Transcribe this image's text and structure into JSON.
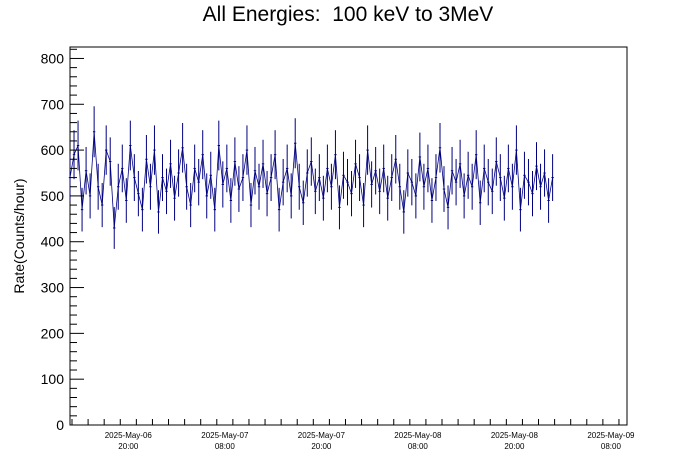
{
  "chart_data": {
    "type": "line",
    "title": "All Energies:  100 keV to 3MeV",
    "xlabel": "",
    "ylabel": "Rate(Counts/hour)",
    "ylim": [
      0,
      825
    ],
    "yticks": [
      0,
      100,
      200,
      300,
      400,
      500,
      600,
      700,
      800
    ],
    "xaxis_time_range": [
      "2025-May-06 12:45",
      "2025-May-09 10:00"
    ],
    "xticks": [
      {
        "date": "2025-May-06",
        "time": "20:00"
      },
      {
        "date": "2025-May-07",
        "time": "08:00"
      },
      {
        "date": "2025-May-07",
        "time": "20:00"
      },
      {
        "date": "2025-May-08",
        "time": "08:00"
      },
      {
        "date": "2025-May-08",
        "time": "20:00"
      },
      {
        "date": "2025-May-09",
        "time": "08:00"
      }
    ],
    "series": [
      {
        "color": "#00007f",
        "error_bars": true,
        "x_start": "2025-May-06 12:45",
        "x_step_hours": 0.5,
        "values": [
          540,
          590,
          610,
          470,
          555,
          500,
          640,
          520,
          480,
          600,
          575,
          430,
          520,
          560,
          490,
          610,
          540,
          505,
          470,
          580,
          520,
          600,
          465,
          540,
          510,
          570,
          495,
          550,
          605,
          520,
          480,
          560,
          530,
          590,
          500,
          545,
          470,
          610,
          525,
          560,
          490,
          575,
          515,
          540,
          600,
          480,
          555,
          520,
          570,
          505,
          540,
          590,
          470,
          530,
          560,
          500,
          615,
          520,
          485,
          550,
          575,
          510,
          540,
          495,
          560,
          520,
          590,
          475,
          545,
          530,
          505,
          570,
          540,
          480,
          600,
          525,
          555,
          510,
          560,
          495,
          540,
          580,
          520,
          465,
          550,
          530,
          500,
          585,
          520,
          560,
          490,
          540,
          605,
          515,
          475,
          555,
          530,
          570,
          500,
          545,
          520,
          590,
          485,
          560,
          530,
          510,
          575,
          540,
          495,
          560,
          520,
          600,
          470,
          545,
          530,
          505,
          565,
          520,
          550,
          490,
          540
        ]
      }
    ],
    "grid": false,
    "legend": "none"
  }
}
